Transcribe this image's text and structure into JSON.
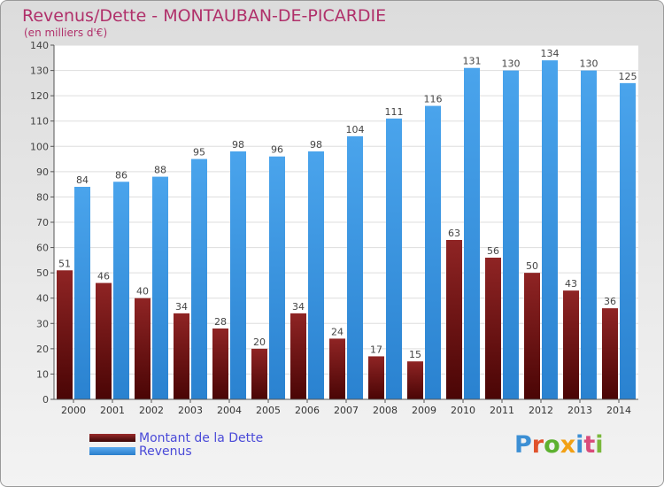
{
  "title": "Revenus/Dette - MONTAUBAN-DE-PICARDIE",
  "subtitle": "(en milliers d'€)",
  "colors": {
    "dette": "#7b1a1a",
    "revenus": "#3a94e0",
    "title": "#b0306a",
    "legend_text": "#4a4ad8"
  },
  "legend": [
    {
      "label": "Montant de la Dette",
      "color": "#6a1414"
    },
    {
      "label": "Revenus",
      "color": "#3a94e0"
    }
  ],
  "logo_text": "Proxiti",
  "chart_data": {
    "type": "bar",
    "title": "Revenus/Dette - MONTAUBAN-DE-PICARDIE",
    "subtitle": "(en milliers d'€)",
    "categories": [
      "2000",
      "2001",
      "2002",
      "2003",
      "2004",
      "2005",
      "2006",
      "2007",
      "2008",
      "2009",
      "2010",
      "2011",
      "2012",
      "2013",
      "2014"
    ],
    "series": [
      {
        "name": "Montant de la Dette",
        "values": [
          51,
          46,
          40,
          34,
          28,
          20,
          34,
          24,
          17,
          15,
          63,
          56,
          50,
          43,
          36
        ]
      },
      {
        "name": "Revenus",
        "values": [
          84,
          86,
          88,
          95,
          98,
          96,
          98,
          104,
          111,
          116,
          131,
          130,
          134,
          130,
          125
        ]
      }
    ],
    "ylim": [
      0,
      140
    ],
    "yticks": [
      0,
      10,
      20,
      30,
      40,
      50,
      60,
      70,
      80,
      90,
      100,
      110,
      120,
      130,
      140
    ],
    "grid": true,
    "legend_position": "bottom-left"
  }
}
